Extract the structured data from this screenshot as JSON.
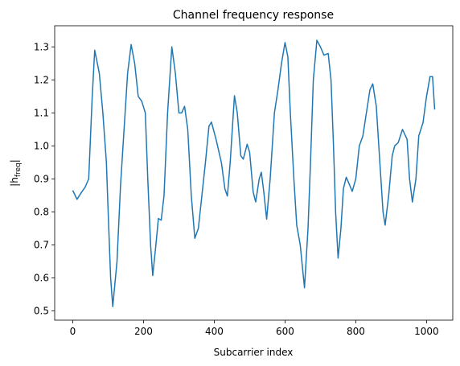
{
  "chart_data": {
    "type": "line",
    "title": "Channel frequency response",
    "xlabel": "Subcarrier index",
    "ylabel": [
      "|h",
      "freq",
      "|"
    ],
    "x": [
      0,
      12,
      25,
      35,
      45,
      55,
      62,
      75,
      85,
      95,
      100,
      107,
      113,
      125,
      135,
      145,
      155,
      165,
      175,
      185,
      195,
      205,
      212,
      220,
      226,
      235,
      242,
      250,
      258,
      268,
      280,
      290,
      300,
      308,
      316,
      325,
      335,
      345,
      355,
      365,
      375,
      385,
      392,
      405,
      420,
      430,
      437,
      445,
      457,
      465,
      475,
      482,
      493,
      500,
      510,
      517,
      527,
      533,
      540,
      548,
      558,
      570,
      580,
      590,
      600,
      608,
      615,
      625,
      633,
      643,
      655,
      665,
      672,
      680,
      690,
      700,
      710,
      722,
      730,
      737,
      743,
      750,
      758,
      765,
      773,
      783,
      790,
      800,
      810,
      820,
      830,
      840,
      848,
      858,
      868,
      877,
      883,
      893,
      903,
      910,
      920,
      932,
      945,
      952,
      960,
      970,
      978,
      990,
      1000,
      1010,
      1017,
      1023
    ],
    "series": [
      {
        "name": "h",
        "color": "#1f77b4",
        "values": [
          0.865,
          0.838,
          0.86,
          0.875,
          0.9,
          1.15,
          1.29,
          1.22,
          1.1,
          0.95,
          0.8,
          0.6,
          0.513,
          0.65,
          0.88,
          1.05,
          1.22,
          1.307,
          1.25,
          1.15,
          1.135,
          1.1,
          0.9,
          0.7,
          0.607,
          0.7,
          0.78,
          0.775,
          0.85,
          1.1,
          1.3,
          1.22,
          1.1,
          1.1,
          1.12,
          1.05,
          0.85,
          0.72,
          0.75,
          0.85,
          0.95,
          1.06,
          1.072,
          1.02,
          0.95,
          0.87,
          0.848,
          0.95,
          1.152,
          1.1,
          0.97,
          0.96,
          1.005,
          0.98,
          0.86,
          0.83,
          0.9,
          0.92,
          0.86,
          0.778,
          0.9,
          1.1,
          1.17,
          1.25,
          1.313,
          1.27,
          1.1,
          0.9,
          0.76,
          0.7,
          0.57,
          0.75,
          0.95,
          1.2,
          1.32,
          1.3,
          1.275,
          1.28,
          1.2,
          1.0,
          0.8,
          0.66,
          0.75,
          0.87,
          0.905,
          0.88,
          0.862,
          0.9,
          1.0,
          1.03,
          1.1,
          1.17,
          1.188,
          1.12,
          0.95,
          0.8,
          0.76,
          0.85,
          0.97,
          1.0,
          1.01,
          1.05,
          1.02,
          0.9,
          0.83,
          0.9,
          1.03,
          1.07,
          1.15,
          1.21,
          1.21,
          1.11
        ]
      }
    ],
    "xlim": [
      -51.15,
      1074.15
    ],
    "ylim": [
      0.472,
      1.364
    ],
    "xticks": [
      0,
      200,
      400,
      600,
      800,
      1000
    ],
    "yticks": [
      0.5,
      0.6,
      0.7,
      0.8,
      0.9,
      {
        "value": 1,
        "label": "1.0"
      },
      1.1,
      1.2,
      1.3
    ],
    "grid": false
  }
}
